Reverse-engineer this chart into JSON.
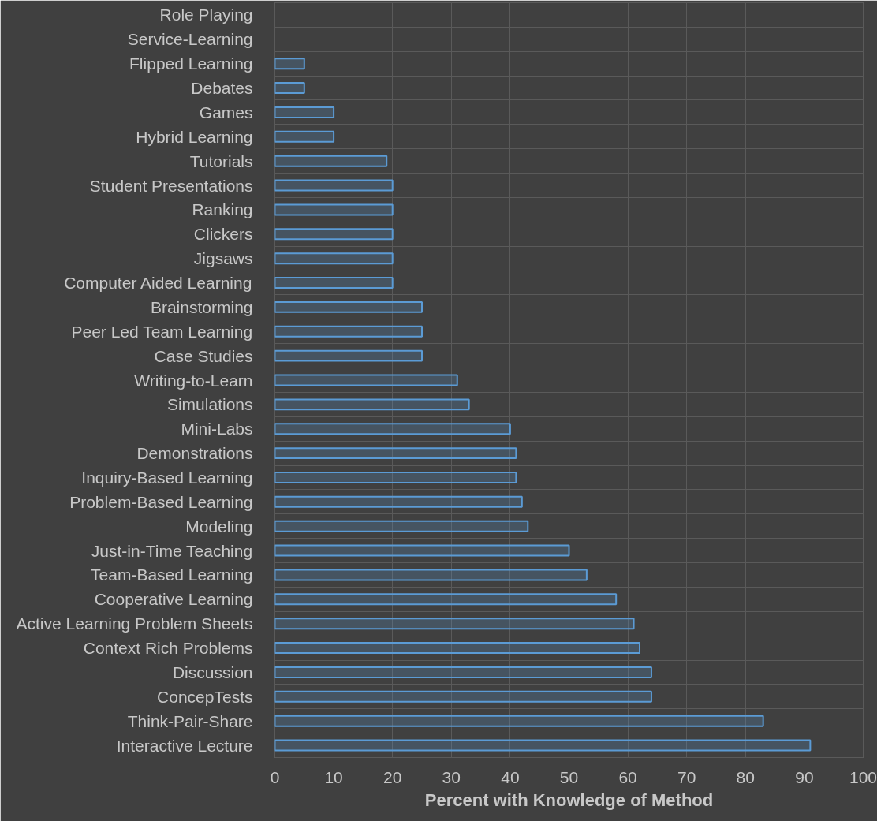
{
  "chart_data": {
    "type": "bar",
    "orientation": "horizontal",
    "categories": [
      "Role Playing",
      "Service-Learning",
      "Flipped Learning",
      "Debates",
      "Games",
      "Hybrid Learning",
      "Tutorials",
      "Student Presentations",
      "Ranking",
      "Clickers",
      "Jigsaws",
      "Computer Aided Learning",
      "Brainstorming",
      "Peer Led Team Learning",
      "Case Studies",
      "Writing-to-Learn",
      "Simulations",
      "Mini-Labs",
      "Demonstrations",
      "Inquiry-Based Learning",
      "Problem-Based Learning",
      "Modeling",
      "Just-in-Time Teaching",
      "Team-Based Learning",
      "Cooperative Learning",
      "Active Learning Problem Sheets",
      "Context Rich Problems",
      "Discussion",
      "ConcepTests",
      "Think-Pair-Share",
      "Interactive Lecture"
    ],
    "values": [
      0,
      0,
      5,
      5,
      10,
      10,
      19,
      20,
      20,
      20,
      20,
      20,
      25,
      25,
      25,
      31,
      33,
      40,
      41,
      41,
      42,
      43,
      50,
      53,
      58,
      61,
      62,
      64,
      64,
      83,
      91
    ],
    "color": "#5b9bd5",
    "xlim": [
      0,
      100
    ],
    "xticks": [
      0,
      10,
      20,
      30,
      40,
      50,
      60,
      70,
      80,
      90,
      100
    ],
    "xlabel": "Percent with Knowledge of Method",
    "grid": true
  }
}
